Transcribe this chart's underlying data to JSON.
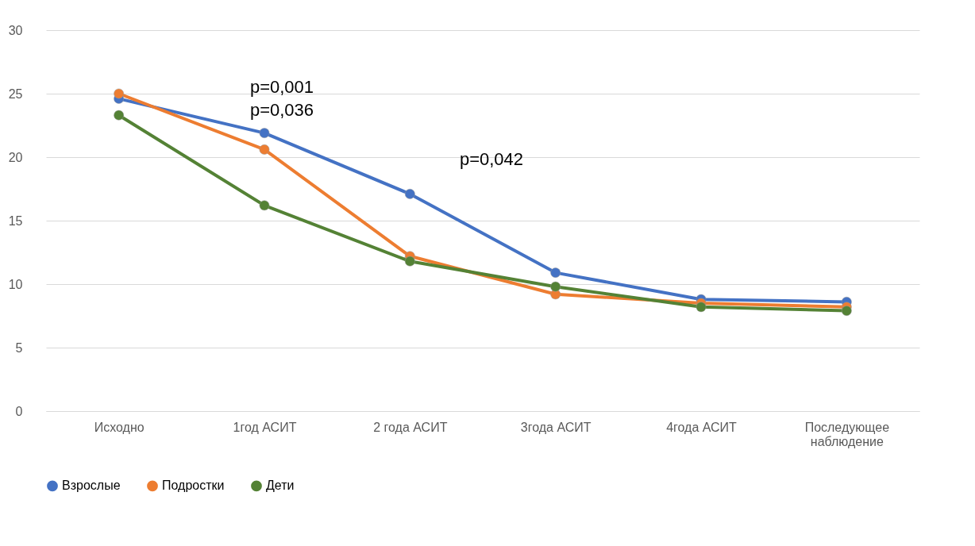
{
  "chart_data": {
    "type": "line",
    "categories": [
      "Исходно",
      "1год АСИТ",
      "2 года АСИТ",
      "3года АСИТ",
      "4года АСИТ",
      "Последующее\nнаблюдение"
    ],
    "series": [
      {
        "name": "Взрослые",
        "color": "#4472c4",
        "values": [
          24.6,
          21.9,
          17.1,
          10.9,
          8.8,
          8.6
        ]
      },
      {
        "name": "Подростки",
        "color": "#ed7d31",
        "values": [
          25.0,
          20.6,
          12.2,
          9.2,
          8.5,
          8.2
        ]
      },
      {
        "name": "Дети",
        "color": "#548235",
        "values": [
          23.3,
          16.2,
          11.8,
          9.8,
          8.2,
          7.9
        ]
      }
    ],
    "ylim": [
      0,
      30
    ],
    "yticks": [
      0,
      5,
      10,
      15,
      20,
      25,
      30
    ],
    "annotations": [
      "p=0,001",
      "p=0,036",
      "p=0,042"
    ],
    "grid": "y",
    "legend": "bottom",
    "marker": "circle",
    "line_style": "solid"
  }
}
